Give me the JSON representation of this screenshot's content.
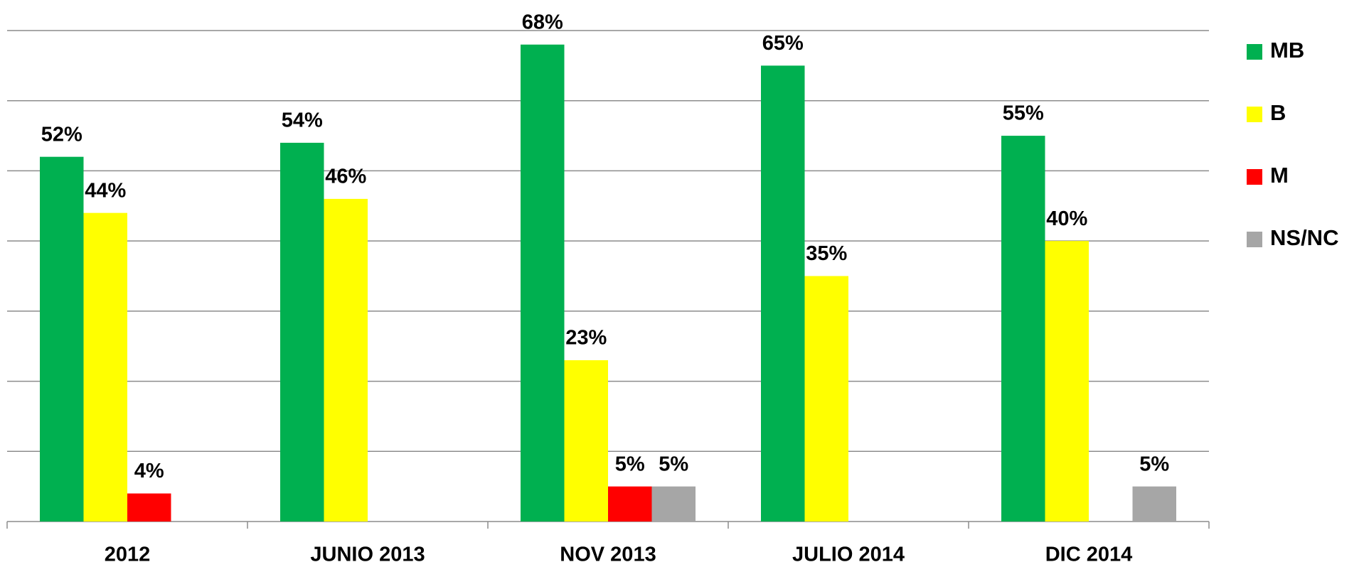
{
  "chart_data": {
    "type": "bar",
    "categories": [
      "2012",
      "JUNIO 2013",
      "NOV 2013",
      "JULIO 2014",
      "DIC 2014"
    ],
    "series": [
      {
        "name": "MB",
        "color": "#00b050",
        "values": [
          52,
          54,
          68,
          65,
          55
        ],
        "value_labels": [
          "52%",
          "54%",
          "68%",
          "65%",
          "55%"
        ]
      },
      {
        "name": "B",
        "color": "#ffff00",
        "values": [
          44,
          46,
          23,
          35,
          40
        ],
        "value_labels": [
          "44%",
          "46%",
          "23%",
          "35%",
          "40%"
        ]
      },
      {
        "name": "M",
        "color": "#ff0000",
        "values": [
          4,
          null,
          5,
          null,
          null
        ],
        "value_labels": [
          "4%",
          null,
          "5%",
          null,
          null
        ]
      },
      {
        "name": "NS/NC",
        "color": "#a6a6a6",
        "values": [
          null,
          null,
          5,
          null,
          5
        ],
        "value_labels": [
          null,
          null,
          "5%",
          null,
          "5%"
        ]
      }
    ],
    "ylim": [
      0,
      70
    ],
    "yticks": [
      0,
      10,
      20,
      30,
      40,
      50,
      60,
      70
    ],
    "grid": true,
    "legend": "right"
  }
}
